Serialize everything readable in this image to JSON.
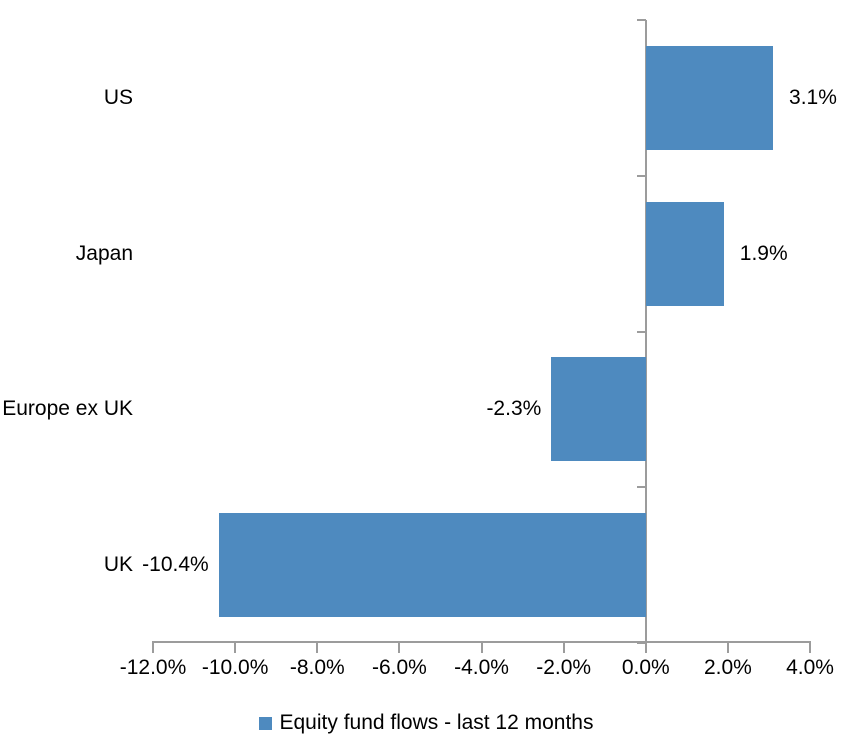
{
  "chart_data": {
    "type": "bar",
    "orientation": "horizontal",
    "title": "",
    "xlabel": "",
    "ylabel": "",
    "categories": [
      "US",
      "Japan",
      "Europe ex UK",
      "UK"
    ],
    "values": [
      3.1,
      1.9,
      -2.3,
      -10.4
    ],
    "value_labels": [
      "3.1%",
      "1.9%",
      "-2.3%",
      "-10.4%"
    ],
    "series": [
      {
        "name": "Equity fund flows - last 12 months",
        "values": [
          3.1,
          1.9,
          -2.3,
          -10.4
        ]
      }
    ],
    "xlim": [
      -12,
      4
    ],
    "x_ticks": [
      {
        "value": -12,
        "label": "-12.0%"
      },
      {
        "value": -10,
        "label": "-10.0%"
      },
      {
        "value": -8,
        "label": "-8.0%"
      },
      {
        "value": -6,
        "label": "-6.0%"
      },
      {
        "value": -4,
        "label": "-4.0%"
      },
      {
        "value": -2,
        "label": "-2.0%"
      },
      {
        "value": 0,
        "label": "0.0%"
      },
      {
        "value": 2,
        "label": "2.0%"
      },
      {
        "value": 4,
        "label": "4.0%"
      }
    ],
    "grid": "off",
    "legend_position": "bottom-center",
    "legend_label": "Equity fund flows - last 12 months",
    "bar_color": "#4E8ABF",
    "axis_color": "#9C9C9C",
    "text_color": "#000000",
    "background_color": "#FFFFFF"
  }
}
